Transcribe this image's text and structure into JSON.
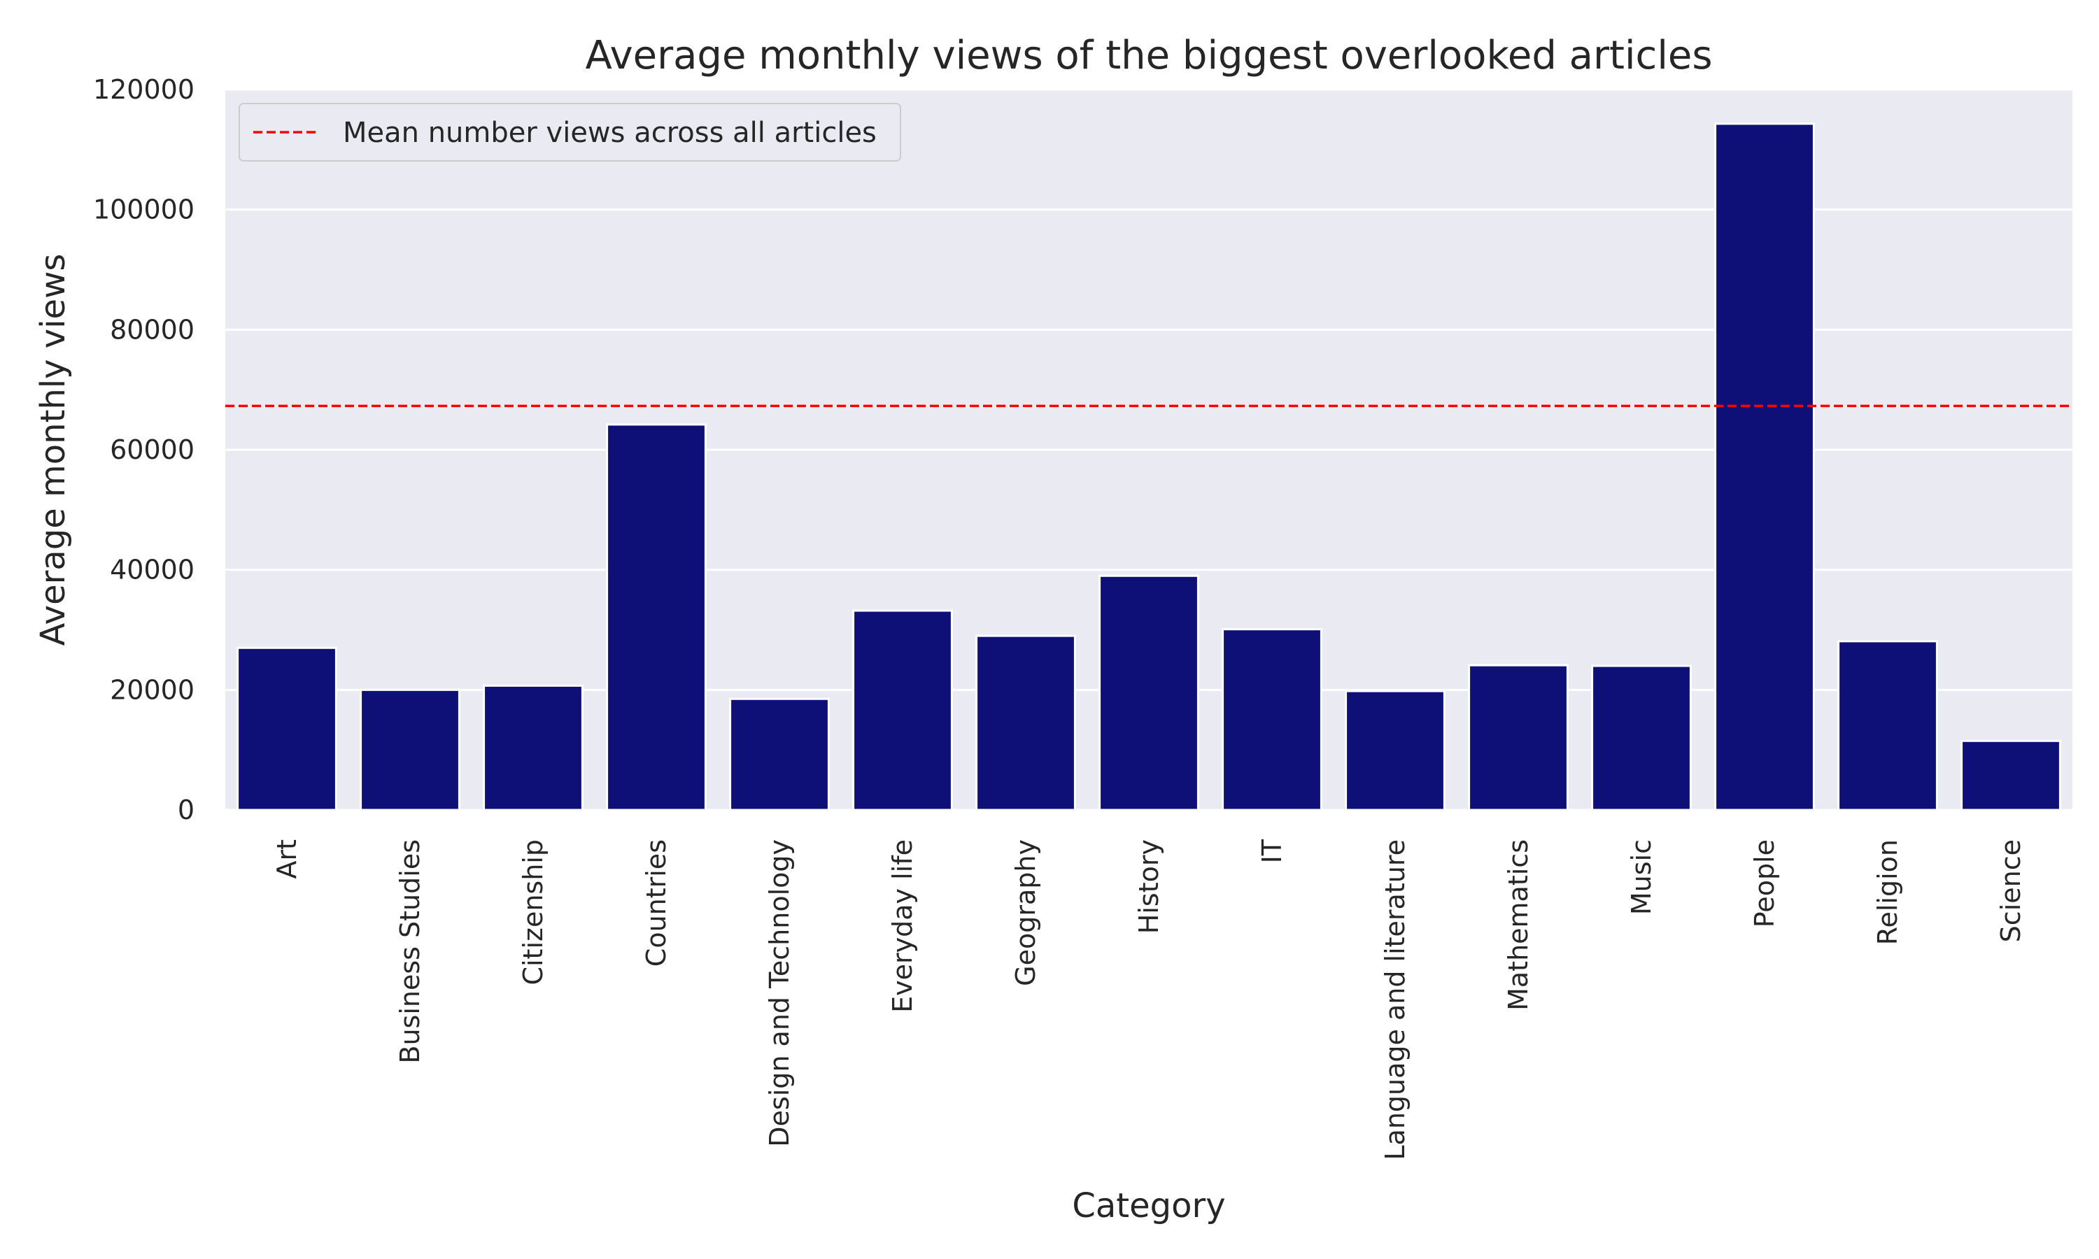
{
  "chart_data": {
    "type": "bar",
    "title": "Average monthly views of the biggest overlooked articles",
    "xlabel": "Category",
    "ylabel": "Average monthly views",
    "categories": [
      "Art",
      "Business Studies",
      "Citizenship",
      "Countries",
      "Design and Technology",
      "Everyday life",
      "Geography",
      "History",
      "IT",
      "Language and literature",
      "Mathematics",
      "Music",
      "People",
      "Religion",
      "Science"
    ],
    "values": [
      27000,
      20000,
      20700,
      64200,
      18500,
      33200,
      29000,
      39000,
      30100,
      19800,
      24100,
      24000,
      114300,
      28100,
      11500
    ],
    "ylim": [
      0,
      120000
    ],
    "yticks": [
      "0",
      "20000",
      "40000",
      "60000",
      "80000",
      "100000",
      "120000"
    ],
    "reference_line": {
      "value": 67300,
      "label": "Mean number views across all articles",
      "color": "#ff0000",
      "style": "dashed"
    },
    "bar_color": "#0f1077",
    "background_color": "#eaeaf2",
    "grid": true,
    "grid_axis": "y",
    "legend_position": "top-left"
  }
}
